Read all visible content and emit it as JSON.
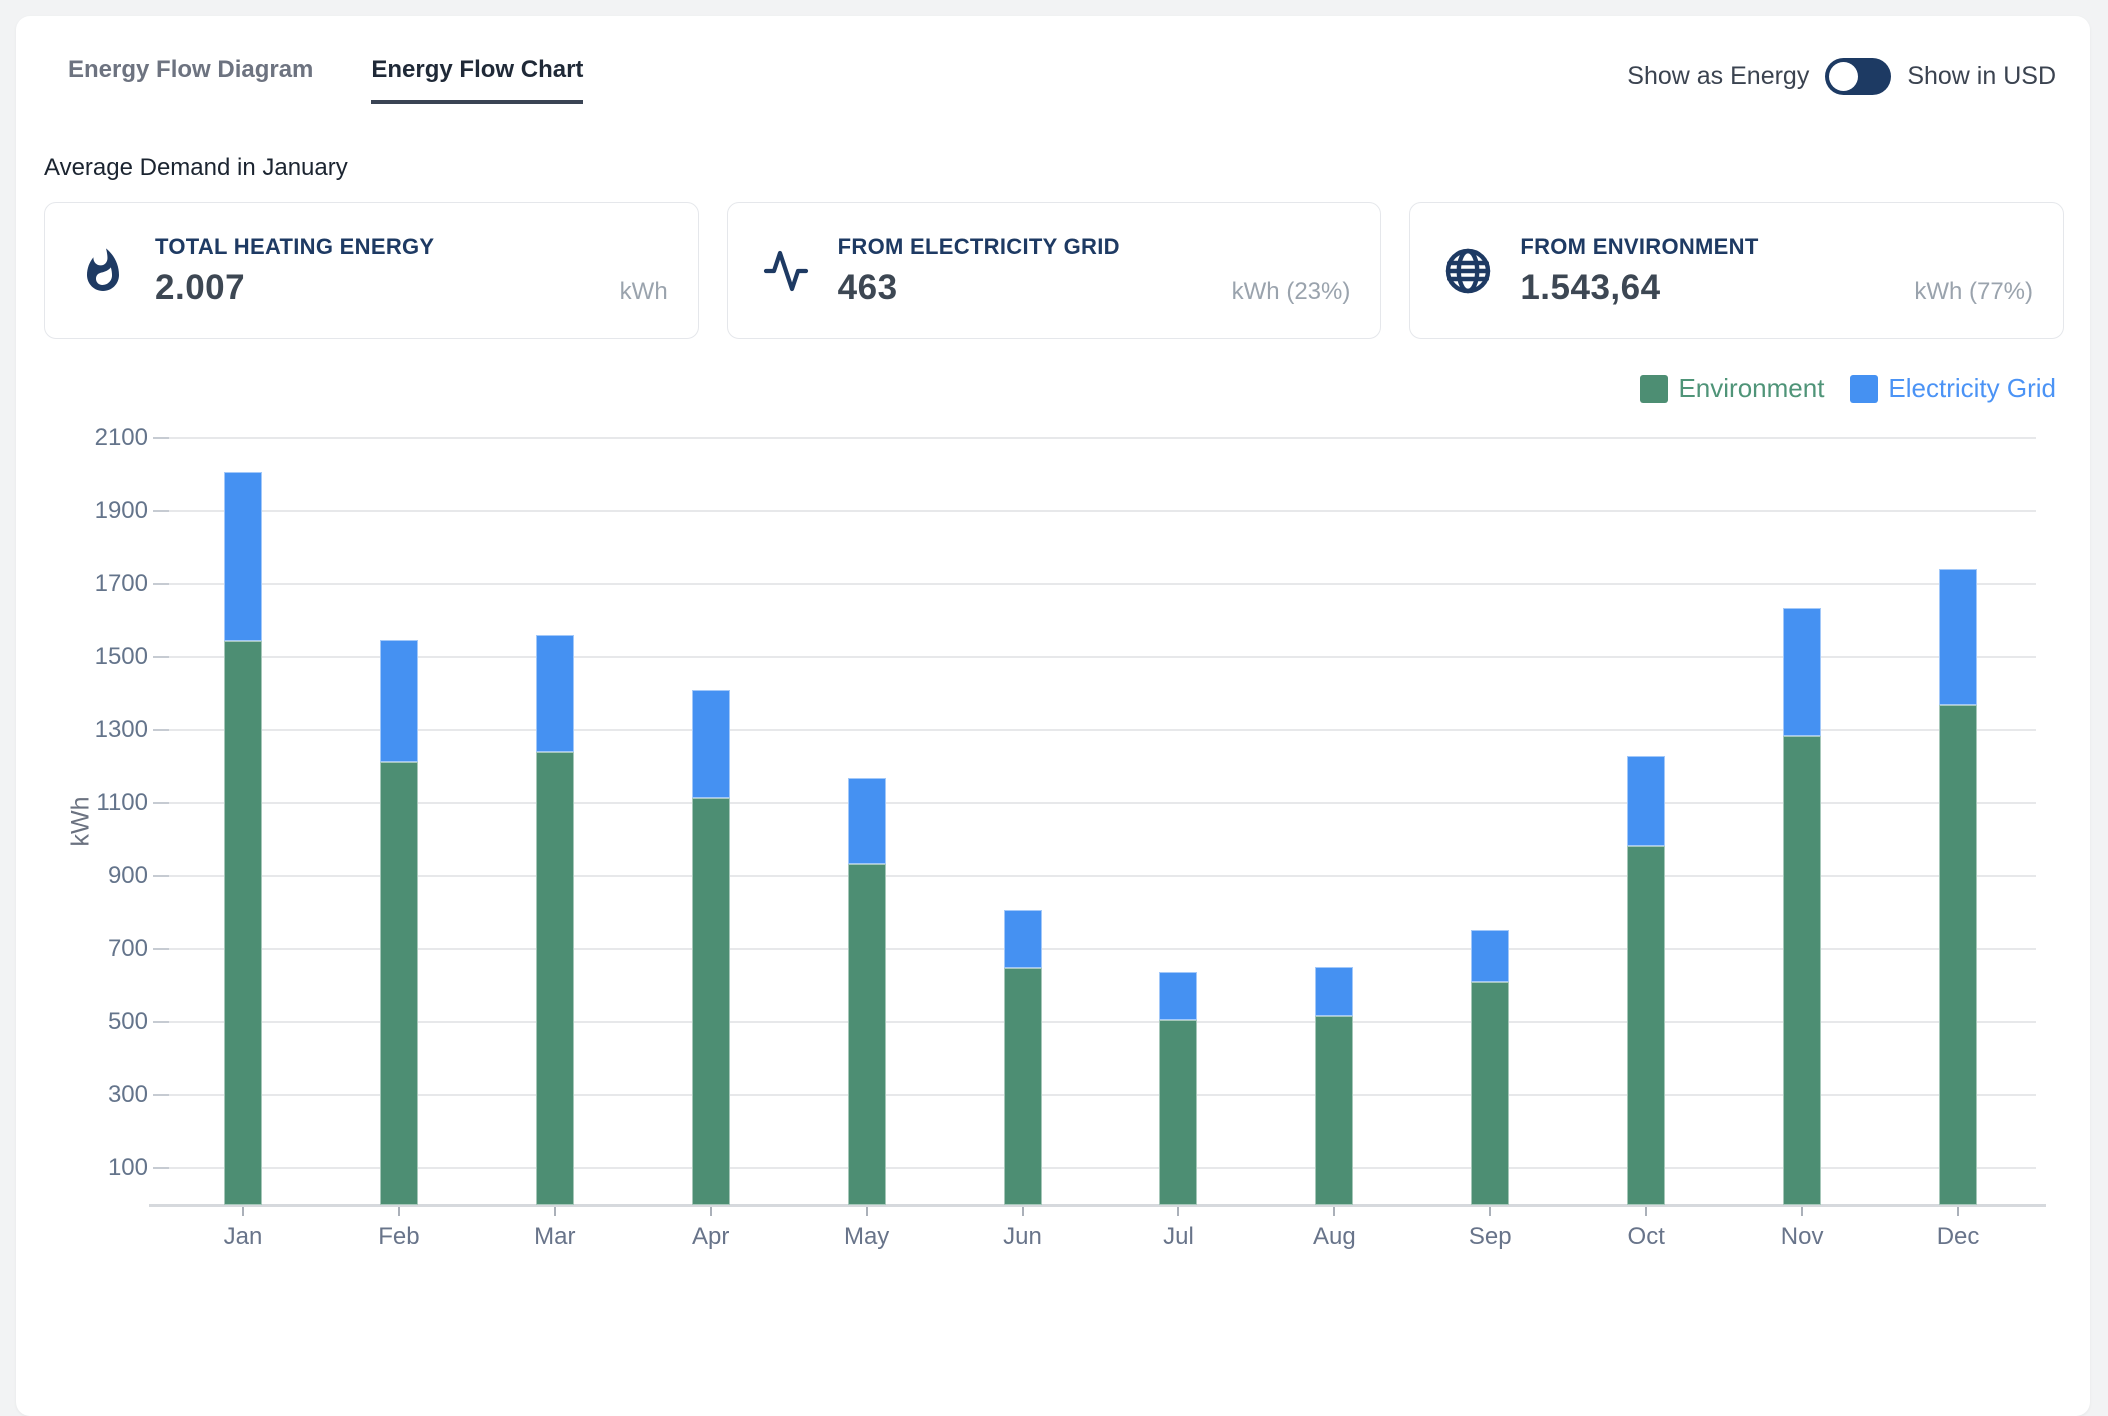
{
  "tabs": [
    {
      "label": "Energy Flow Diagram",
      "active": false
    },
    {
      "label": "Energy Flow Chart",
      "active": true
    }
  ],
  "toggle": {
    "left_label": "Show as Energy",
    "right_label": "Show in USD",
    "state": "left",
    "color": "#1d3a63"
  },
  "section_title": "Average Demand in January",
  "cards": [
    {
      "icon": "flame-icon",
      "title": "TOTAL HEATING ENERGY",
      "value": "2.007",
      "unit": "kWh"
    },
    {
      "icon": "activity-icon",
      "title": "FROM ELECTRICITY GRID",
      "value": "463",
      "unit": "kWh (23%)"
    },
    {
      "icon": "globe-icon",
      "title": "FROM ENVIRONMENT",
      "value": "1.543,64",
      "unit": "kWh (77%)"
    }
  ],
  "legend": [
    {
      "label": "Environment",
      "color": "#4d8e73",
      "text_color": "#4f9478"
    },
    {
      "label": "Electricity Grid",
      "color": "#4591f2",
      "text_color": "#4b93f5"
    }
  ],
  "chart_data": {
    "type": "bar",
    "stacked": true,
    "title": "",
    "xlabel": "",
    "ylabel": "kWh",
    "ylim": [
      0,
      2100
    ],
    "yticks": [
      100,
      300,
      500,
      700,
      900,
      1100,
      1300,
      1500,
      1700,
      1900,
      2100
    ],
    "grid": true,
    "legend_position": "top-right",
    "categories": [
      "Jan",
      "Feb",
      "Mar",
      "Apr",
      "May",
      "Jun",
      "Jul",
      "Aug",
      "Sep",
      "Oct",
      "Nov",
      "Dec"
    ],
    "series": [
      {
        "name": "Environment",
        "color": "#4d8e73",
        "values": [
          1543.64,
          1213,
          1239,
          1115,
          933,
          648,
          507,
          517,
          610,
          983,
          1285,
          1368
        ]
      },
      {
        "name": "Electricity Grid",
        "color": "#4591f2",
        "values": [
          463,
          334,
          321,
          295,
          235,
          160,
          132,
          134,
          144,
          245,
          349,
          373
        ]
      }
    ]
  },
  "colors": {
    "accent_navy": "#1e3a63",
    "page_background": "#f2f3f4",
    "panel_background": "#ffffff",
    "card_border": "#e5e7eb",
    "gridline": "#e7e8ea",
    "tick_text": "#64748b"
  }
}
